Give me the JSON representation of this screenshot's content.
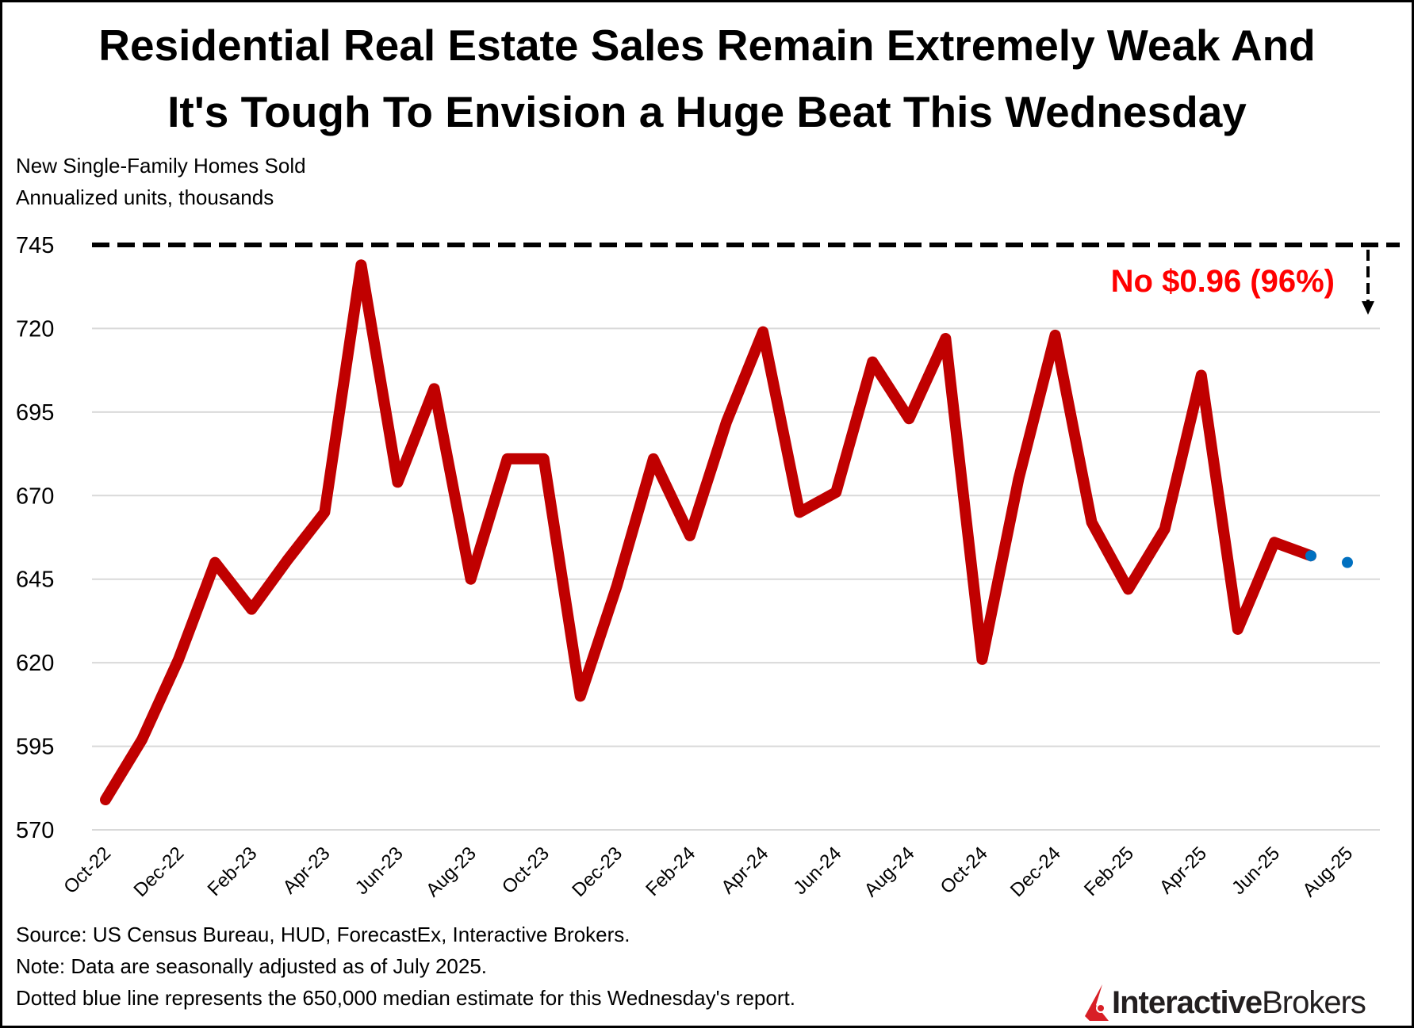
{
  "header": {
    "title_line1": "Residential Real Estate Sales Remain Extremely Weak And",
    "title_line2": "It's Tough To Envision a Huge Beat This Wednesday",
    "subtitle_line1": "New Single-Family Homes Sold",
    "subtitle_line2": "Annualized units, thousands"
  },
  "footer": {
    "source": "Source: US Census Bureau, HUD, ForecastEx, Interactive Brokers.",
    "note": "Note: Data are seasonally adjusted as of July 2025.",
    "dotted": "Dotted blue line represents the 650,000 median estimate for this Wednesday's report.",
    "logo_bold": "Interactive",
    "logo_regular": "Brokers"
  },
  "chart_data": {
    "type": "line",
    "title": "Residential Real Estate Sales Remain Extremely Weak And It's Tough To Envision a Huge Beat This Wednesday",
    "ylabel": "Annualized units, thousands",
    "ylim": [
      570,
      745
    ],
    "yticks": [
      570,
      595,
      620,
      645,
      670,
      695,
      720,
      745
    ],
    "grid": true,
    "x": [
      "Oct-22",
      "Nov-22",
      "Dec-22",
      "Jan-23",
      "Feb-23",
      "Mar-23",
      "Apr-23",
      "May-23",
      "Jun-23",
      "Jul-23",
      "Aug-23",
      "Sep-23",
      "Oct-23",
      "Nov-23",
      "Dec-23",
      "Jan-24",
      "Feb-24",
      "Mar-24",
      "Apr-24",
      "May-24",
      "Jun-24",
      "Jul-24",
      "Aug-24",
      "Sep-24",
      "Oct-24",
      "Nov-24",
      "Dec-24",
      "Jan-25",
      "Feb-25",
      "Mar-25",
      "Apr-25",
      "May-25",
      "Jun-25",
      "Jul-25",
      "Aug-25"
    ],
    "xtick_labels": [
      "Oct-22",
      "Dec-22",
      "Feb-23",
      "Apr-23",
      "Jun-23",
      "Aug-23",
      "Oct-23",
      "Dec-23",
      "Feb-24",
      "Apr-24",
      "Jun-24",
      "Aug-24",
      "Oct-24",
      "Dec-24",
      "Feb-25",
      "Apr-25",
      "Jun-25",
      "Aug-25"
    ],
    "series": [
      {
        "values": [
          579,
          597,
          621,
          650,
          636,
          651,
          665,
          739,
          674,
          702,
          645,
          681,
          681,
          610,
          643,
          681,
          658,
          692,
          719,
          665,
          671,
          710,
          693,
          717,
          621,
          675,
          718,
          662,
          642,
          660,
          706,
          630,
          656,
          652,
          null
        ],
        "color": "#c00000",
        "style": "solid"
      },
      {
        "values": [
          null,
          null,
          null,
          null,
          null,
          null,
          null,
          null,
          null,
          null,
          null,
          null,
          null,
          null,
          null,
          null,
          null,
          null,
          null,
          null,
          null,
          null,
          null,
          null,
          null,
          null,
          null,
          null,
          null,
          null,
          null,
          null,
          null,
          652,
          650
        ],
        "color": "#0070c0",
        "style": "dotted"
      }
    ],
    "reference_line": {
      "value": 745,
      "style": "dashed",
      "color": "#000000"
    },
    "annotation": {
      "text": "No $0.96 (96%)",
      "color": "#ff0000"
    }
  }
}
